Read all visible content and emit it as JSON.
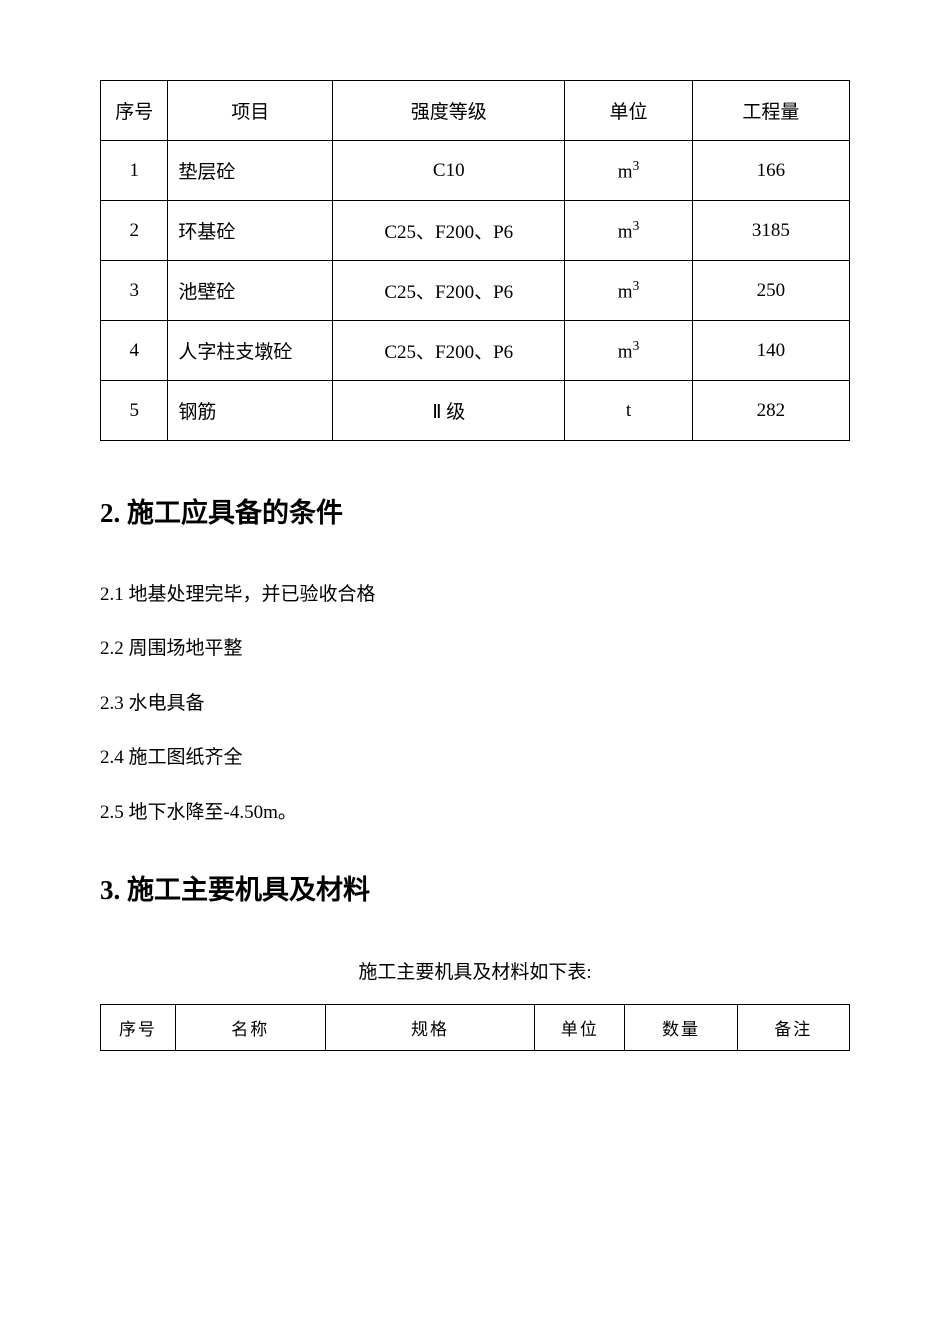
{
  "table1": {
    "headers": {
      "seq": "序号",
      "item": "项目",
      "grade": "强度等级",
      "unit": "单位",
      "qty": "工程量"
    },
    "rows": [
      {
        "seq": "1",
        "item": "垫层砼",
        "grade": "C10",
        "unit_base": "m",
        "unit_sup": "3",
        "qty": "166"
      },
      {
        "seq": "2",
        "item": "环基砼",
        "grade": "C25、F200、P6",
        "unit_base": "m",
        "unit_sup": "3",
        "qty": "3185"
      },
      {
        "seq": "3",
        "item": "池壁砼",
        "grade": "C25、F200、P6",
        "unit_base": "m",
        "unit_sup": "3",
        "qty": "250"
      },
      {
        "seq": "4",
        "item": "人字柱支墩砼",
        "grade": "C25、F200、P6",
        "unit_base": "m",
        "unit_sup": "3",
        "qty": "140"
      },
      {
        "seq": "5",
        "item": "钢筋",
        "grade": "Ⅱ 级",
        "unit_base": "t",
        "unit_sup": "",
        "qty": "282"
      }
    ]
  },
  "heading_section2": "2. 施工应具备的条件",
  "section2": {
    "p1": "2.1 地基处理完毕，并已验收合格",
    "p2": "2.2 周围场地平整",
    "p3": "2.3 水电具备",
    "p4": "2.4 施工图纸齐全",
    "p5": "2.5 地下水降至-4.50m。"
  },
  "heading_section3": "3. 施工主要机具及材料",
  "table2_caption": "施工主要机具及材料如下表:",
  "table2": {
    "headers": {
      "seq": "序号",
      "name": "名称",
      "spec": "规格",
      "unit": "单位",
      "qty": "数量",
      "note": "备注"
    }
  },
  "styles": {
    "background_color": "#ffffff",
    "text_color": "#000000",
    "border_color": "#000000",
    "body_fontsize": 19,
    "heading_fontsize": 27,
    "table2_fontsize": 17
  }
}
